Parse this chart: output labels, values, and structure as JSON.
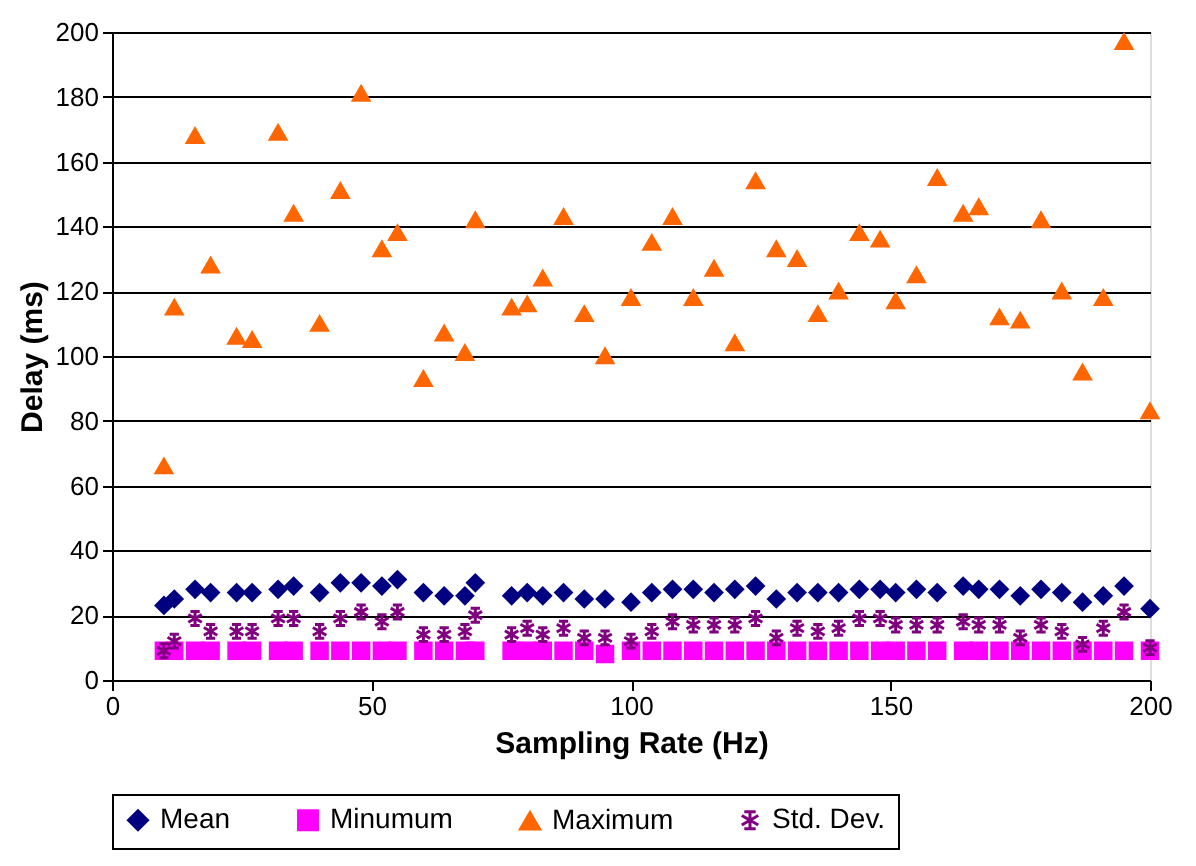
{
  "chart_data": {
    "type": "scatter",
    "xlabel": "Sampling Rate (Hz)",
    "ylabel": "Delay (ms)",
    "x": [
      10,
      12,
      16,
      19,
      24,
      27,
      32,
      35,
      40,
      44,
      48,
      52,
      55,
      60,
      64,
      68,
      70,
      77,
      80,
      83,
      87,
      91,
      95,
      100,
      104,
      108,
      112,
      116,
      120,
      124,
      128,
      132,
      136,
      140,
      144,
      148,
      151,
      155,
      159,
      164,
      167,
      171,
      175,
      179,
      183,
      187,
      191,
      195,
      200
    ],
    "series": [
      {
        "name": "Mean",
        "color": "#000080",
        "marker": "diamond",
        "values": [
          23,
          25,
          28,
          27,
          27,
          27,
          28,
          29,
          27,
          30,
          30,
          29,
          31,
          27,
          26,
          26,
          30,
          26,
          27,
          26,
          27,
          25,
          25,
          24,
          27,
          28,
          28,
          27,
          28,
          29,
          25,
          27,
          27,
          27,
          28,
          28,
          27,
          28,
          27,
          29,
          28,
          28,
          26,
          28,
          27,
          24,
          26,
          29,
          22
        ]
      },
      {
        "name": "Minumum",
        "color": "#ff00ff",
        "marker": "square",
        "values": [
          9,
          9,
          9,
          9,
          9,
          9,
          9,
          9,
          9,
          9,
          9,
          9,
          9,
          9,
          9,
          9,
          9,
          9,
          9,
          9,
          9,
          9,
          8,
          9,
          9,
          9,
          9,
          9,
          9,
          9,
          9,
          9,
          9,
          9,
          9,
          9,
          9,
          9,
          9,
          9,
          9,
          9,
          9,
          9,
          9,
          9,
          9,
          9,
          9
        ]
      },
      {
        "name": "Maximum",
        "color": "#ff6600",
        "marker": "triangle",
        "values": [
          66,
          115,
          168,
          128,
          106,
          105,
          169,
          144,
          110,
          151,
          181,
          133,
          138,
          93,
          107,
          101,
          142,
          115,
          116,
          124,
          143,
          113,
          100,
          118,
          135,
          143,
          118,
          127,
          104,
          154,
          133,
          130,
          113,
          120,
          138,
          136,
          117,
          125,
          155,
          144,
          146,
          112,
          111,
          142,
          120,
          95,
          118,
          197,
          83
        ]
      },
      {
        "name": "Std. Dev.",
        "color": "#800080",
        "marker": "cross",
        "values": [
          9,
          12,
          19,
          15,
          15,
          15,
          19,
          19,
          15,
          19,
          21,
          18,
          21,
          14,
          14,
          15,
          20,
          14,
          16,
          14,
          16,
          13,
          13,
          12,
          15,
          18,
          17,
          17,
          17,
          19,
          13,
          16,
          15,
          16,
          19,
          19,
          17,
          17,
          17,
          18,
          17,
          17,
          13,
          17,
          15,
          11,
          16,
          21,
          10
        ]
      }
    ],
    "xlim": [
      0,
      200
    ],
    "xticks": [
      0,
      50,
      100,
      150,
      200
    ],
    "ylim": [
      0,
      200
    ],
    "yticks": [
      0,
      20,
      40,
      60,
      80,
      100,
      120,
      140,
      160,
      180,
      200
    ],
    "grid": "y",
    "legend": "bottom"
  }
}
